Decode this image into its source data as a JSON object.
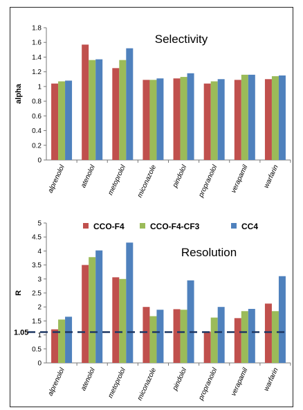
{
  "chart_data": [
    {
      "type": "bar",
      "title": "Selectivity",
      "xlabel": "",
      "ylabel": "alpha",
      "ylim": [
        0,
        1.8
      ],
      "yticks": [
        "0",
        "0.2",
        "0.4",
        "0.6",
        "0.8",
        "1",
        "1.2",
        "1.4",
        "1.6",
        "1.8"
      ],
      "categories": [
        "alprenolol",
        "atenolol",
        "metoprolol",
        "miconazole",
        "pindolol",
        "propranolol",
        "verapamil",
        "warfarin"
      ],
      "series": [
        {
          "name": "CCO-F4",
          "color": "#c0504d",
          "values": [
            1.04,
            1.57,
            1.25,
            1.09,
            1.11,
            1.04,
            1.09,
            1.1
          ]
        },
        {
          "name": "CCO-F4-CF3",
          "color": "#9bbb59",
          "values": [
            1.07,
            1.36,
            1.36,
            1.09,
            1.13,
            1.07,
            1.16,
            1.14
          ]
        },
        {
          "name": "CC4",
          "color": "#4f81bd",
          "values": [
            1.08,
            1.37,
            1.52,
            1.11,
            1.18,
            1.1,
            1.16,
            1.15
          ]
        }
      ],
      "grid": false
    },
    {
      "type": "bar",
      "title": "Resolution",
      "xlabel": "",
      "ylabel": "R",
      "ylim": [
        0,
        5
      ],
      "yticks": [
        "0",
        "0.5",
        "1",
        "1.5",
        "2",
        "2.5",
        "3",
        "3.5",
        "4",
        "4.5",
        "5"
      ],
      "categories": [
        "alprenolol",
        "atenolol",
        "metoprolol",
        "miconazole",
        "pindolol",
        "propranolol",
        "verapamil",
        "warfarin"
      ],
      "series": [
        {
          "name": "CCO-F4",
          "color": "#c0504d",
          "values": [
            1.2,
            3.5,
            3.06,
            2.0,
            1.92,
            1.12,
            1.6,
            2.12
          ]
        },
        {
          "name": "CCO-F4-CF3",
          "color": "#9bbb59",
          "values": [
            1.55,
            3.78,
            3.0,
            1.67,
            1.9,
            1.62,
            1.85,
            1.85
          ]
        },
        {
          "name": "CC4",
          "color": "#4f81bd",
          "values": [
            1.65,
            4.02,
            4.3,
            1.9,
            2.95,
            2.0,
            1.93,
            3.1
          ]
        }
      ],
      "reference_line": {
        "value": 1.1,
        "label": "1.05",
        "color": "#1f3864"
      },
      "legend": {
        "placement": "top",
        "entries": [
          "CCO-F4",
          "CCO-F4-CF3",
          "CC4"
        ]
      },
      "grid": false
    }
  ]
}
